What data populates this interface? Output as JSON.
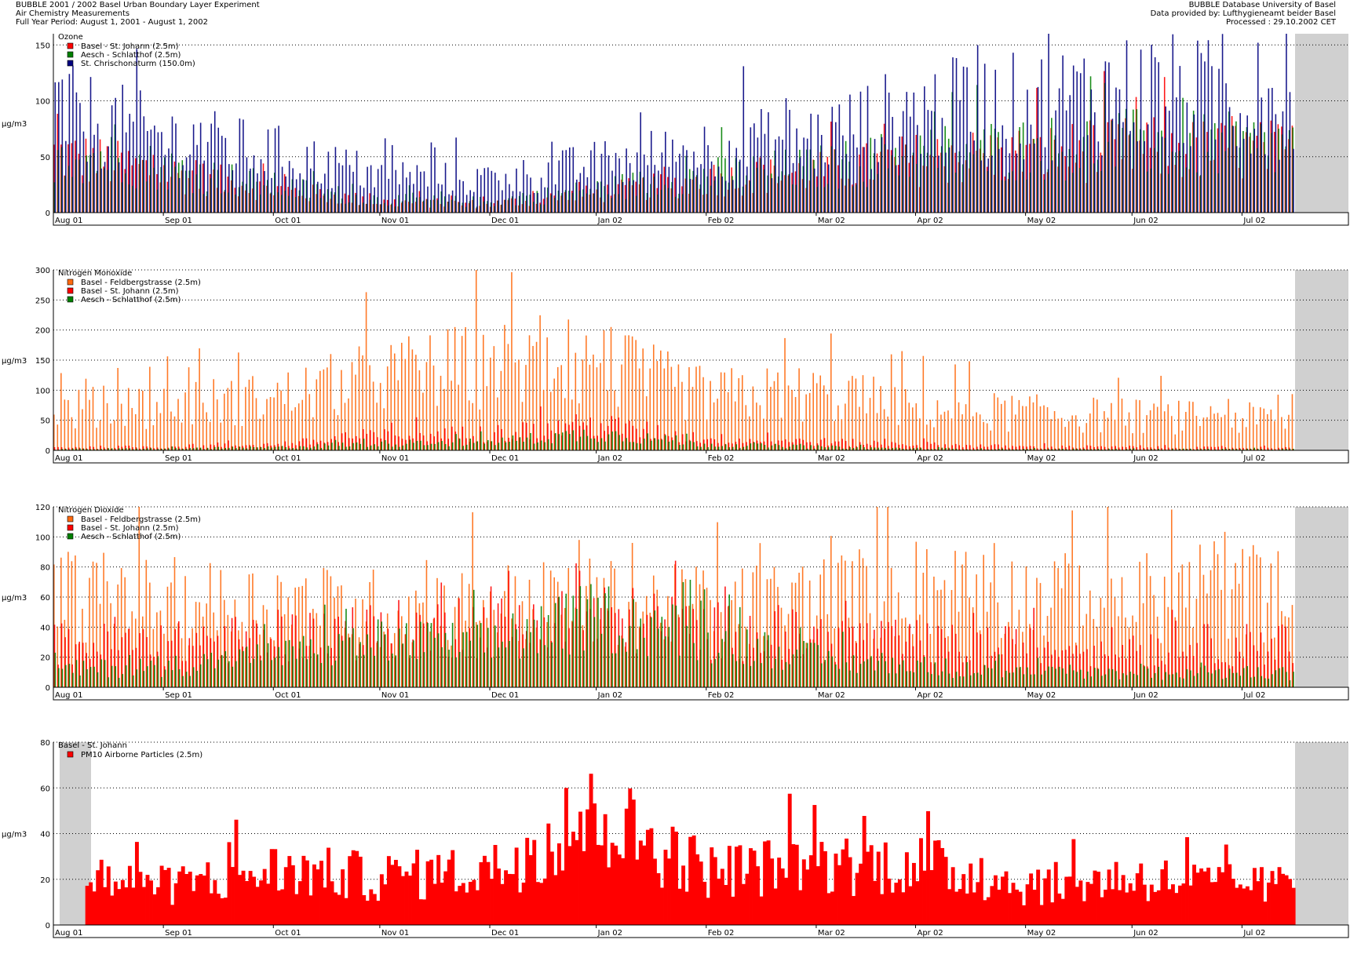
{
  "header": {
    "left": [
      "BUBBLE 2001 / 2002 Basel Urban Boundary Layer Experiment",
      "Air Chemistry Measurements",
      "Full Year Period: August 1, 2001 - August 1, 2002"
    ],
    "right": [
      "BUBBLE Database University of Basel",
      "Data provided by: Lufthygieneamt beider Basel",
      "Processed : 29.10.2002 CET"
    ]
  },
  "colors": {
    "red": "#ff0000",
    "green": "#008000",
    "navy": "#000080",
    "orange": "#ff6a10",
    "teal": "#2aa58a",
    "olive": "#7b4a00",
    "nodata": "#d0d0d0",
    "missing_line": "#c8c8c8"
  },
  "chart_data": [
    {
      "type": "bar",
      "title": "Ozone",
      "ylabel": "µg/m3",
      "ylim": [
        0,
        160
      ],
      "yticks": [
        0,
        50,
        100,
        150
      ],
      "xticks": [
        "Aug 01",
        "Sep 01",
        "Oct 01",
        "Nov 01",
        "Dec 01",
        "Jan 02",
        "Feb 02",
        "Mar 02",
        "Apr 02",
        "May 02",
        "Jun 02",
        "Jul 02"
      ],
      "grid": true,
      "legend_position": "top-left",
      "series": [
        {
          "name": "Basel - St. Johann (2.5m)",
          "color": "#ff0000",
          "monthly_levels": [
            55,
            38,
            22,
            10,
            8,
            18,
            30,
            38,
            50,
            55,
            60,
            58
          ]
        },
        {
          "name": "Aesch - Schlatthof (2.5m)",
          "color": "#008000",
          "monthly_levels": [
            60,
            42,
            25,
            12,
            10,
            22,
            35,
            42,
            55,
            60,
            65,
            62
          ]
        },
        {
          "name": "St. Chrischonaturm (150.0m)",
          "color": "#000080",
          "monthly_levels": [
            95,
            70,
            55,
            35,
            30,
            45,
            60,
            70,
            95,
            100,
            115,
            105
          ]
        }
      ],
      "nodata_periods": [
        {
          "start": "Jul 02",
          "end": "Aug 02"
        }
      ]
    },
    {
      "type": "bar",
      "title": "Nitrogen Monoxide",
      "ylabel": "µg/m3",
      "ylim": [
        0,
        300
      ],
      "yticks": [
        0,
        50,
        100,
        150,
        200,
        250,
        300
      ],
      "xticks": [
        "Aug 01",
        "Sep 01",
        "Oct 01",
        "Nov 01",
        "Dec 01",
        "Jan 02",
        "Feb 02",
        "Mar 02",
        "Apr 02",
        "May 02",
        "Jun 02",
        "Jul 02"
      ],
      "grid": true,
      "legend_position": "top-left",
      "series": [
        {
          "name": "Basel - Feldbergstrasse (2.5m)",
          "color": "#ff6a10",
          "monthly_levels": [
            70,
            80,
            90,
            130,
            150,
            150,
            95,
            100,
            75,
            65,
            60,
            55
          ]
        },
        {
          "name": "Basel - St. Johann (2.5m)",
          "color": "#ff0000",
          "monthly_levels": [
            5,
            6,
            10,
            25,
            30,
            45,
            20,
            15,
            10,
            6,
            5,
            4
          ]
        },
        {
          "name": "Aesch - Schlatthof (2.5m)",
          "color": "#008000",
          "monthly_levels": [
            2,
            3,
            5,
            12,
            15,
            30,
            10,
            6,
            3,
            2,
            2,
            2
          ]
        }
      ],
      "nodata_periods": [
        {
          "start": "Jul 02",
          "end": "Aug 02"
        }
      ]
    },
    {
      "type": "bar",
      "title": "Nitrogen Dioxide",
      "ylabel": "µg/m3",
      "ylim": [
        0,
        120
      ],
      "yticks": [
        0,
        20,
        40,
        60,
        80,
        100,
        120
      ],
      "xticks": [
        "Aug 01",
        "Sep 01",
        "Oct 01",
        "Nov 01",
        "Dec 01",
        "Jan 02",
        "Feb 02",
        "Mar 02",
        "Apr 02",
        "May 02",
        "Jun 02",
        "Jul 02"
      ],
      "grid": true,
      "legend_position": "top-left",
      "series": [
        {
          "name": "Basel - Feldbergstrasse (2.5m)",
          "color": "#ff6a10",
          "monthly_levels": [
            65,
            60,
            58,
            55,
            58,
            60,
            55,
            62,
            70,
            62,
            62,
            65
          ]
        },
        {
          "name": "Basel - St. Johann (2.5m)",
          "color": "#ff0000",
          "monthly_levels": [
            30,
            30,
            35,
            40,
            42,
            50,
            40,
            35,
            30,
            28,
            28,
            30
          ]
        },
        {
          "name": "Aesch - Schlatthof (2.5m)",
          "color": "#008000",
          "monthly_levels": [
            12,
            15,
            22,
            32,
            30,
            50,
            35,
            20,
            15,
            10,
            10,
            10
          ]
        }
      ],
      "nodata_periods": [
        {
          "start": "Jul 02",
          "end": "Aug 02"
        }
      ]
    },
    {
      "type": "bar",
      "title": "Basel - St. Johann",
      "ylabel": "µg/m3",
      "ylim": [
        0,
        80
      ],
      "yticks": [
        0,
        20,
        40,
        60,
        80
      ],
      "xticks": [
        "Aug 01",
        "Sep 01",
        "Oct 01",
        "Nov 01",
        "Dec 01",
        "Jan 02",
        "Feb 02",
        "Mar 02",
        "Apr 02",
        "May 02",
        "Jun 02",
        "Jul 02"
      ],
      "grid": true,
      "legend_position": "top-left",
      "series": [
        {
          "name": "PM10 Airborne Particles (2.5m)",
          "color": "#ff0000",
          "monthly_levels": [
            22,
            18,
            25,
            22,
            25,
            50,
            25,
            28,
            28,
            18,
            22,
            18
          ]
        }
      ],
      "nodata_periods": [
        {
          "start": "Aug 01",
          "end": "Aug 01"
        },
        {
          "start": "Jul 02",
          "end": "Aug 02"
        }
      ]
    }
  ]
}
